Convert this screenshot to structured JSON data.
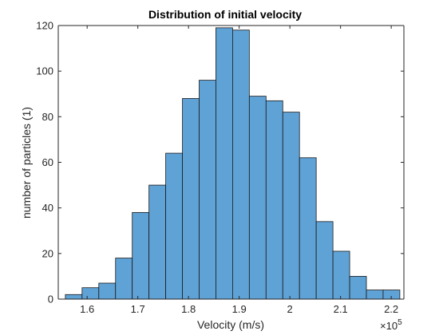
{
  "chart_data": {
    "type": "bar",
    "title": "Distribution of initial velocity",
    "xlabel": "Velocity (m/s)",
    "ylabel": "number of particles (1)",
    "x_exponent_label": "×10",
    "x_exponent_power": "5",
    "xlim": [
      1.543,
      2.225
    ],
    "ylim": [
      0,
      120
    ],
    "xticks": [
      1.6,
      1.7,
      1.8,
      1.9,
      2.0,
      2.1,
      2.2
    ],
    "xtick_labels": [
      "1.6",
      "1.7",
      "1.8",
      "1.9",
      "2",
      "2.1",
      "2.2"
    ],
    "yticks": [
      0,
      20,
      40,
      60,
      80,
      100,
      120
    ],
    "ytick_labels": [
      "0",
      "20",
      "40",
      "60",
      "80",
      "100",
      "120"
    ],
    "bin_edges": [
      1.557,
      1.59,
      1.623,
      1.656,
      1.689,
      1.722,
      1.755,
      1.788,
      1.821,
      1.854,
      1.887,
      1.92,
      1.953,
      1.986,
      2.019,
      2.052,
      2.085,
      2.118,
      2.151,
      2.184,
      2.217
    ],
    "counts": [
      2,
      5,
      7,
      18,
      38,
      50,
      64,
      88,
      96,
      119,
      118,
      89,
      87,
      82,
      62,
      34,
      21,
      10,
      4,
      4
    ],
    "colors": {
      "bar_fill": "#5fa2d6",
      "bar_edge": "#1a1a1a",
      "axes": "#262626",
      "background": "#ffffff"
    },
    "grid": false
  }
}
